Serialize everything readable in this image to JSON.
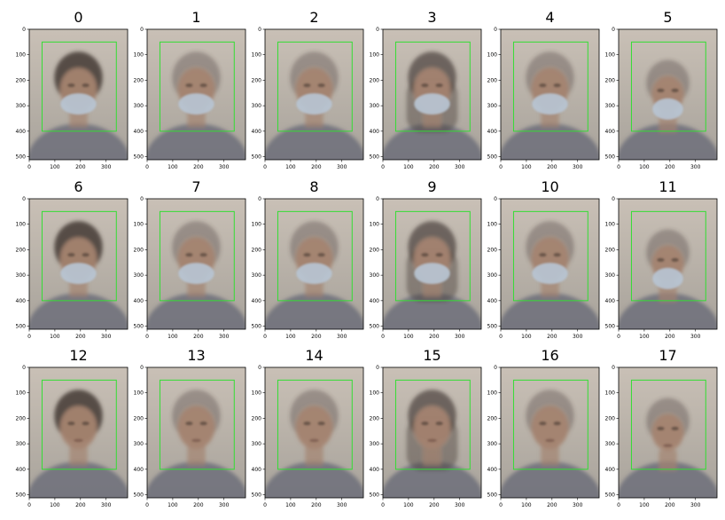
{
  "chart_data": {
    "type": "image-grid",
    "layout": {
      "rows": 3,
      "cols": 6
    },
    "panels": [
      {
        "title": "0",
        "variant": "dark-hair-mask"
      },
      {
        "title": "1",
        "variant": "mask"
      },
      {
        "title": "2",
        "variant": "mask"
      },
      {
        "title": "3",
        "variant": "long-hair-mask"
      },
      {
        "title": "4",
        "variant": "mask"
      },
      {
        "title": "5",
        "variant": "mask-small"
      },
      {
        "title": "6",
        "variant": "dark-hair-mask"
      },
      {
        "title": "7",
        "variant": "mask"
      },
      {
        "title": "8",
        "variant": "mask"
      },
      {
        "title": "9",
        "variant": "long-hair-mask"
      },
      {
        "title": "10",
        "variant": "mask"
      },
      {
        "title": "11",
        "variant": "mask-small"
      },
      {
        "title": "12",
        "variant": "dark-hair"
      },
      {
        "title": "13",
        "variant": "plain"
      },
      {
        "title": "14",
        "variant": "plain"
      },
      {
        "title": "15",
        "variant": "long-hair"
      },
      {
        "title": "16",
        "variant": "plain"
      },
      {
        "title": "17",
        "variant": "plain-small"
      }
    ],
    "image_size": {
      "width": 384,
      "height": 512
    },
    "x_ticks": [
      0,
      100,
      200,
      300
    ],
    "y_ticks": [
      0,
      100,
      200,
      300,
      400,
      500
    ],
    "bbox": {
      "x0": 50,
      "y0": 50,
      "x1": 340,
      "y1": 400
    },
    "colors": {
      "bbox": "#33dd33",
      "background_top": "#c9c0b6",
      "background_bottom": "#a8a39b",
      "skin": "#a48370",
      "hair": "#4a403a",
      "mask": "#b7c4d2",
      "clothes": "#6c6f7a"
    }
  }
}
